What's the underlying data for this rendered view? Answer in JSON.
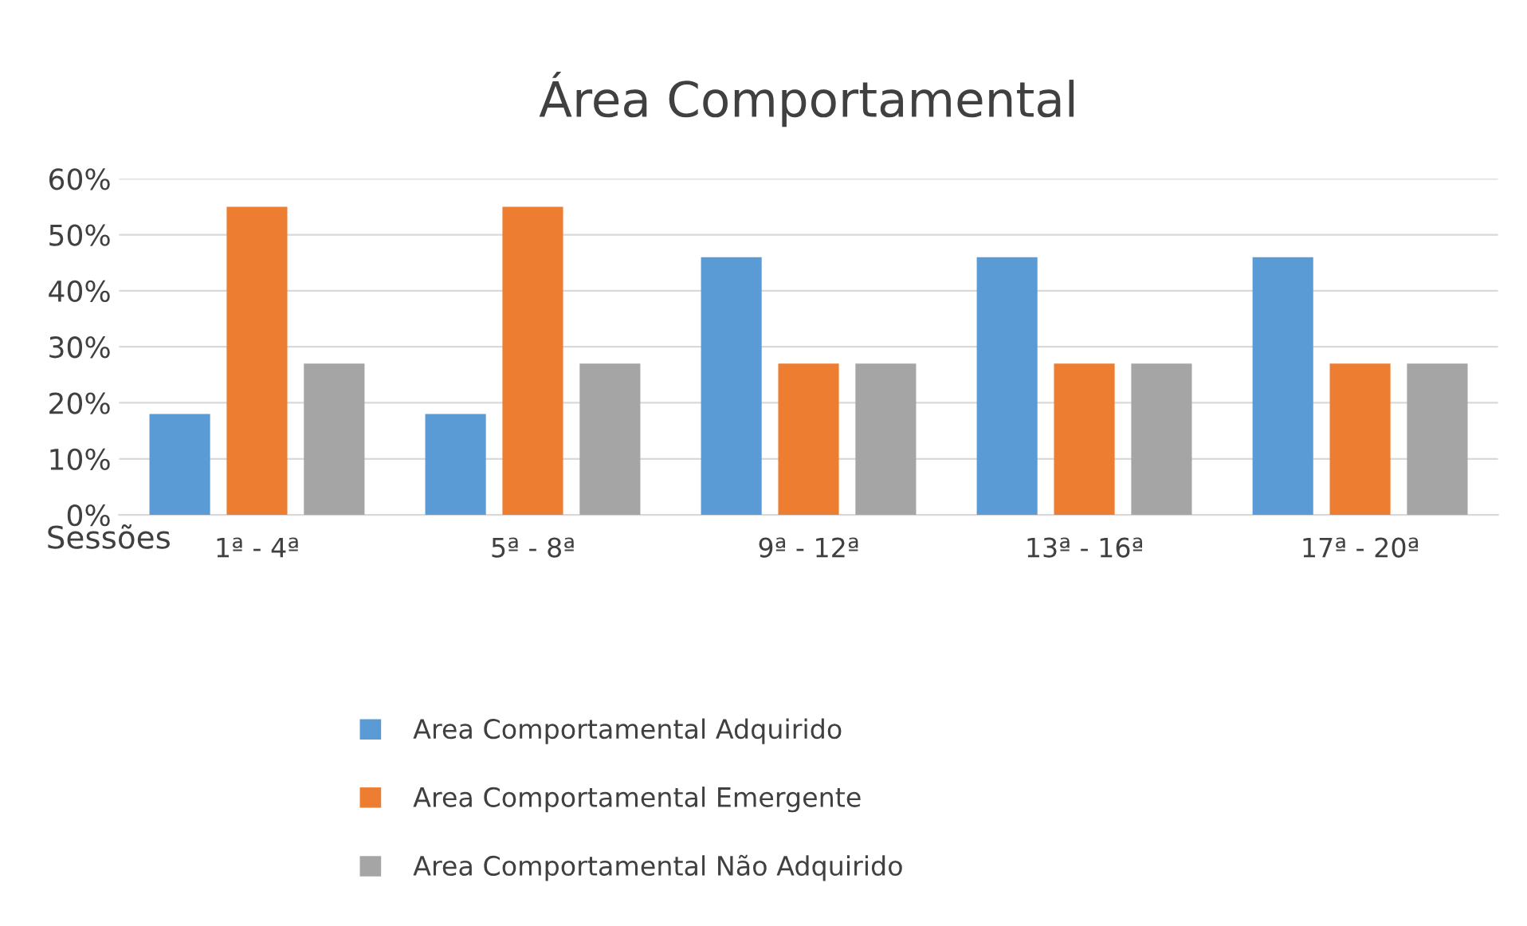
{
  "chart_data": {
    "type": "bar",
    "title": "Área Comportamental",
    "xlabel": "Sessões",
    "categories": [
      "1ª - 4ª",
      "5ª - 8ª",
      "9ª - 12ª",
      "13ª - 16ª",
      "17ª - 20ª"
    ],
    "series": [
      {
        "name": "Area Comportamental Adquirido",
        "color": "#5b9bd5",
        "values": [
          18,
          18,
          46,
          46,
          46
        ]
      },
      {
        "name": "Area Comportamental Emergente",
        "color": "#ed7d31",
        "values": [
          55,
          55,
          27,
          27,
          27
        ]
      },
      {
        "name": "Area Comportamental Não Adquirido",
        "color": "#a5a5a5",
        "values": [
          27,
          27,
          27,
          27,
          27
        ]
      }
    ],
    "ylim": [
      0,
      60
    ],
    "yticks": [
      {
        "value": 0,
        "label": "0%"
      },
      {
        "value": 10,
        "label": "10%"
      },
      {
        "value": 20,
        "label": "20%"
      },
      {
        "value": 30,
        "label": "30%"
      },
      {
        "value": 40,
        "label": "40%"
      },
      {
        "value": 50,
        "label": "50%"
      },
      {
        "value": 60,
        "label": "60%"
      }
    ],
    "grid": "y",
    "legend": "bottom"
  }
}
